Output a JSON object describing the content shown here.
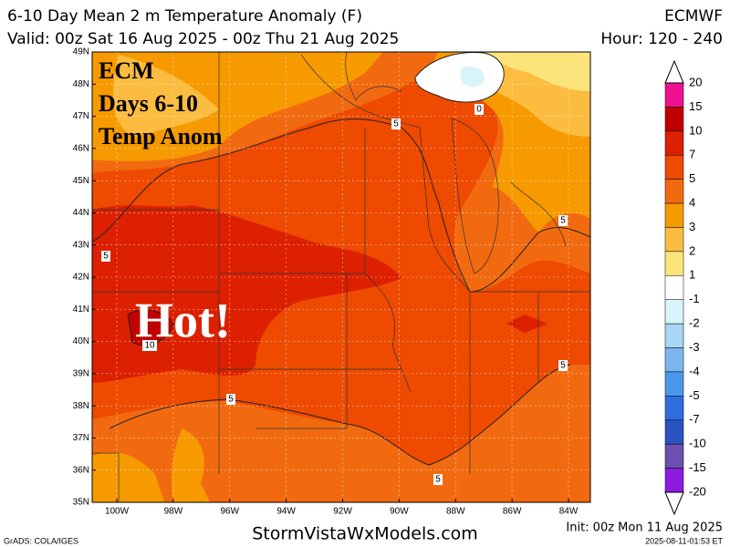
{
  "header": {
    "title": "6-10 Day Mean 2 m Temperature Anomaly (F)",
    "model": "ECMWF",
    "valid": "Valid: 00z Sat 16 Aug 2025 - 00z Thu 21 Aug 2025",
    "hours": "Hour: 120 - 240"
  },
  "map": {
    "lat_labels": [
      "49N",
      "48N",
      "47N",
      "46N",
      "45N",
      "44N",
      "43N",
      "42N",
      "41N",
      "40N",
      "39N",
      "38N",
      "37N",
      "36N",
      "35N"
    ],
    "lon_labels": [
      "100W",
      "98W",
      "96W",
      "94W",
      "92W",
      "90W",
      "88W",
      "86W",
      "84W"
    ],
    "contour_labels": [
      "5",
      "0",
      "5",
      "5",
      "10",
      "5",
      "5",
      "5"
    ],
    "overlay": {
      "line1": "ECM",
      "line2": "Days 6-10",
      "line3": "Temp Anom",
      "callout": "Hot!"
    }
  },
  "colorbar": {
    "labels": [
      "20",
      "15",
      "10",
      "7",
      "5",
      "4",
      "3",
      "2",
      "1",
      "-1",
      "-2",
      "-3",
      "-4",
      "-5",
      "-7",
      "-10",
      "-15",
      "-20"
    ],
    "colors": [
      "#ee1090",
      "#c00000",
      "#dc2000",
      "#ee4a00",
      "#f26a10",
      "#f69a00",
      "#fbbc40",
      "#fce47a",
      "#ffffff",
      "#d8f4fb",
      "#a8d6f4",
      "#7ab6ee",
      "#4c98e8",
      "#2f6ede",
      "#2a52c0",
      "#6c4fae",
      "#8c1ae0"
    ]
  },
  "footer": {
    "site": "StormVistaWxModels.com",
    "init": "Init: 00z Mon 11 Aug 2025",
    "software": "GrADS: COLA/IGES",
    "stamp": "2025-08-11-01:53 ET"
  }
}
